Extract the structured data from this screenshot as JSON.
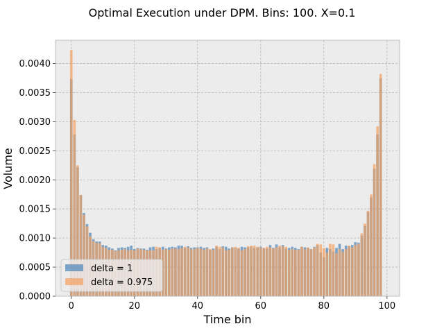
{
  "chart_data": {
    "type": "bar",
    "title": "Optimal Execution under DPM. Bins: 100. X=0.1",
    "xlabel": "Time bin",
    "ylabel": "Volume",
    "xlim": [
      -5,
      104
    ],
    "ylim": [
      0,
      0.0044
    ],
    "x_ticks": [
      "0",
      "20",
      "40",
      "60",
      "80",
      "100"
    ],
    "y_ticks": [
      "0.0000",
      "0.0005",
      "0.0010",
      "0.0015",
      "0.0020",
      "0.0025",
      "0.0030",
      "0.0035",
      "0.0040"
    ],
    "grid": true,
    "legend_position": "lower-left",
    "x": [
      0,
      1,
      2,
      3,
      4,
      5,
      6,
      7,
      8,
      9,
      10,
      11,
      12,
      13,
      14,
      15,
      16,
      17,
      18,
      19,
      20,
      21,
      22,
      23,
      24,
      25,
      26,
      27,
      28,
      29,
      30,
      31,
      32,
      33,
      34,
      35,
      36,
      37,
      38,
      39,
      40,
      41,
      42,
      43,
      44,
      45,
      46,
      47,
      48,
      49,
      50,
      51,
      52,
      53,
      54,
      55,
      56,
      57,
      58,
      59,
      60,
      61,
      62,
      63,
      64,
      65,
      66,
      67,
      68,
      69,
      70,
      71,
      72,
      73,
      74,
      75,
      76,
      77,
      78,
      79,
      80,
      81,
      82,
      83,
      84,
      85,
      86,
      87,
      88,
      89,
      90,
      91,
      92,
      93,
      94,
      95,
      96,
      97,
      98,
      99
    ],
    "series": [
      {
        "name": "delta = 1",
        "color": "#4c84b8",
        "values": [
          0.00373,
          0.00278,
          0.00222,
          0.00174,
          0.00143,
          0.00124,
          0.00109,
          0.00098,
          0.00094,
          0.00094,
          0.00088,
          0.00087,
          0.00084,
          0.00082,
          0.00079,
          0.00083,
          0.00084,
          0.00083,
          0.00085,
          0.00087,
          0.00081,
          0.00083,
          0.00082,
          0.00082,
          0.0008,
          0.00084,
          0.00085,
          0.00081,
          0.00083,
          0.00085,
          0.00082,
          0.00084,
          0.00085,
          0.00084,
          0.00087,
          0.00087,
          0.00083,
          0.00086,
          0.00083,
          0.00084,
          0.00084,
          0.00085,
          0.00083,
          0.00084,
          0.0008,
          0.00082,
          0.00085,
          0.00081,
          0.00086,
          0.00085,
          0.00082,
          0.00084,
          0.00083,
          0.00082,
          0.00085,
          0.00084,
          0.00084,
          0.00085,
          0.00083,
          0.00084,
          0.00085,
          0.00083,
          0.00082,
          0.00088,
          0.00083,
          0.00089,
          0.00084,
          0.00088,
          0.00082,
          0.00083,
          0.00085,
          0.00083,
          0.00081,
          0.00085,
          0.00084,
          0.00083,
          0.00081,
          0.00085,
          0.00088,
          0.00075,
          0.00067,
          0.00083,
          0.00081,
          0.00077,
          0.00083,
          0.0009,
          0.00081,
          0.00087,
          0.00086,
          0.00088,
          0.00093,
          0.00092,
          0.00104,
          0.00121,
          0.00145,
          0.0017,
          0.00219,
          0.00278,
          0.00375,
          0.0
        ]
      },
      {
        "name": "delta = 0.975",
        "color": "#f5a060",
        "values": [
          0.00423,
          0.00303,
          0.00225,
          0.00174,
          0.0014,
          0.0012,
          0.00103,
          0.00095,
          0.00092,
          0.00091,
          0.00085,
          0.00083,
          0.0008,
          0.0008,
          0.00078,
          0.00079,
          0.0008,
          0.00081,
          0.00079,
          0.0008,
          0.00079,
          0.00082,
          0.00081,
          0.0008,
          0.00079,
          0.00079,
          0.00079,
          0.00085,
          0.00084,
          0.0008,
          0.00081,
          0.0008,
          0.00082,
          0.00082,
          0.00081,
          0.00083,
          0.00085,
          0.00084,
          0.00081,
          0.00081,
          0.00083,
          0.00082,
          0.0008,
          0.00082,
          0.00081,
          0.0008,
          0.00087,
          0.00085,
          0.00084,
          0.00079,
          0.0008,
          0.00084,
          0.00085,
          0.00083,
          0.00079,
          0.00081,
          0.00086,
          0.00087,
          0.00087,
          0.00085,
          0.00084,
          0.00083,
          0.00085,
          0.00084,
          0.00082,
          0.00084,
          0.00087,
          0.00086,
          0.00085,
          0.0008,
          0.00081,
          0.0008,
          0.0008,
          0.00085,
          0.00081,
          0.00084,
          0.00081,
          0.00084,
          0.0009,
          0.00089,
          0.00083,
          0.00075,
          0.0009,
          0.00089,
          0.00074,
          0.00081,
          0.00076,
          0.00081,
          0.00087,
          0.00084,
          0.00088,
          0.0009,
          0.00108,
          0.00125,
          0.00147,
          0.00175,
          0.00227,
          0.00292,
          0.00382,
          0.0
        ]
      }
    ]
  }
}
